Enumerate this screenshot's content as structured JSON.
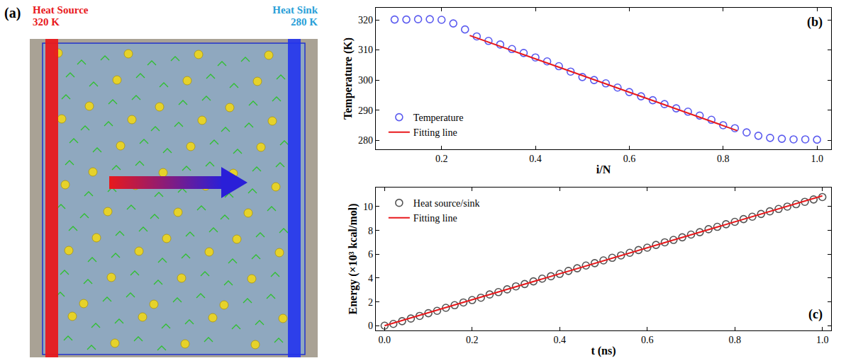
{
  "diagram": {
    "panel_label": "(a)",
    "heat_source": {
      "label": "Heat Source",
      "temperature": "320 K",
      "color": "#e8191c"
    },
    "heat_sink": {
      "label": "Heat Sink",
      "temperature": "280 K",
      "color": "#2a9fd8"
    }
  },
  "chart_data": [
    {
      "type": "scatter",
      "panel_label": "(b)",
      "x_label": "i/N",
      "y_label": "Temperature (K)",
      "x": [
        0.1,
        0.125,
        0.15,
        0.175,
        0.2,
        0.225,
        0.25,
        0.275,
        0.3,
        0.325,
        0.35,
        0.375,
        0.4,
        0.425,
        0.45,
        0.475,
        0.5,
        0.525,
        0.55,
        0.575,
        0.6,
        0.625,
        0.65,
        0.675,
        0.7,
        0.725,
        0.75,
        0.775,
        0.8,
        0.825,
        0.85,
        0.875,
        0.9,
        0.925,
        0.95,
        0.975,
        1.0
      ],
      "series": [
        {
          "name": "Temperature",
          "color": "#5b5bef",
          "marker": "open circle",
          "values": [
            320.1,
            320.1,
            320.2,
            320.2,
            320.0,
            318.8,
            316.8,
            314.5,
            313.0,
            311.8,
            310.3,
            309.0,
            307.5,
            306.2,
            304.6,
            302.8,
            301.0,
            300.0,
            298.9,
            297.5,
            296.0,
            294.6,
            293.3,
            292.0,
            290.6,
            289.5,
            288.2,
            286.8,
            285.0,
            284.0,
            282.6,
            281.5,
            280.8,
            280.5,
            280.3,
            280.3,
            280.2
          ]
        },
        {
          "name": "Fitting line",
          "type": "line",
          "color": "#e8191c",
          "x": [
            0.26,
            0.83
          ],
          "values": [
            314.8,
            283.2
          ]
        }
      ],
      "xlim": [
        0.06,
        1.03
      ],
      "xticks": [
        0.2,
        0.4,
        0.6,
        0.8,
        {
          "value": 1.0,
          "label": "1.0"
        }
      ],
      "ylim": [
        277,
        324
      ],
      "yticks": [
        280,
        290,
        300,
        310,
        320
      ],
      "legend": "lower left"
    },
    {
      "type": "scatter",
      "panel_label": "(c)",
      "x_label": "t (ns)",
      "y_label": "Energy (×10³ kcal/mol)",
      "x": [
        0.0,
        0.02,
        0.04,
        0.06,
        0.08,
        0.1,
        0.12,
        0.14,
        0.16,
        0.18,
        0.2,
        0.22,
        0.24,
        0.26,
        0.28,
        0.3,
        0.32,
        0.34,
        0.36,
        0.38,
        0.4,
        0.42,
        0.44,
        0.46,
        0.48,
        0.5,
        0.52,
        0.54,
        0.56,
        0.58,
        0.6,
        0.62,
        0.64,
        0.66,
        0.68,
        0.7,
        0.72,
        0.74,
        0.76,
        0.78,
        0.8,
        0.82,
        0.84,
        0.86,
        0.88,
        0.9,
        0.92,
        0.94,
        0.96,
        0.98,
        1.0
      ],
      "series": [
        {
          "name": "Heat source/sink",
          "color": "#555555",
          "marker": "open circle",
          "values": [
            0.0,
            0.15,
            0.38,
            0.6,
            0.82,
            1.05,
            1.25,
            1.5,
            1.72,
            1.95,
            2.15,
            2.35,
            2.62,
            2.82,
            3.05,
            3.3,
            3.5,
            3.72,
            3.95,
            4.15,
            4.35,
            4.6,
            4.82,
            5.05,
            5.25,
            5.48,
            5.7,
            5.9,
            6.12,
            6.35,
            6.55,
            6.78,
            7.0,
            7.2,
            7.42,
            7.65,
            7.85,
            8.1,
            8.3,
            8.52,
            8.72,
            8.95,
            9.15,
            9.38,
            9.6,
            9.8,
            10.0,
            10.2,
            10.4,
            10.6,
            10.8
          ]
        },
        {
          "name": "Fitting line",
          "type": "line",
          "color": "#e8191c",
          "x": [
            0.0,
            1.0
          ],
          "values": [
            0.0,
            10.9
          ]
        }
      ],
      "xlim": [
        -0.02,
        1.02
      ],
      "xticks": [
        {
          "value": 0,
          "label": "0.0"
        },
        0.2,
        0.4,
        0.6,
        0.8,
        {
          "value": 1.0,
          "label": "1.0"
        }
      ],
      "ylim": [
        -0.4,
        11.6
      ],
      "yticks": [
        0,
        2,
        4,
        6,
        8,
        10
      ],
      "legend": "upper left"
    }
  ]
}
